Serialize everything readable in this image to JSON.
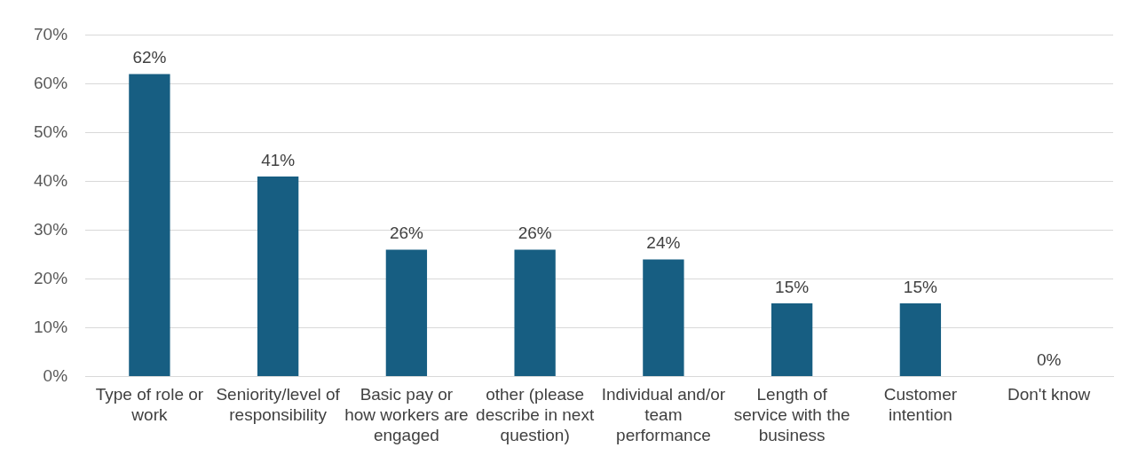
{
  "chart_data": {
    "type": "bar",
    "categories": [
      "Type of role or work",
      "Seniority/level of responsibility",
      "Basic pay or how workers are engaged",
      "other (please describe in next question)",
      "Individual and/or team performance",
      "Length of service with the business",
      "Customer intention",
      "Don't know"
    ],
    "values": [
      62,
      41,
      26,
      26,
      24,
      15,
      15,
      0
    ],
    "value_labels": [
      "62%",
      "41%",
      "26%",
      "26%",
      "24%",
      "15%",
      "15%",
      "0%"
    ],
    "color": "#175e82",
    "ylim": [
      0,
      70
    ],
    "yticks": [
      {
        "value": 0,
        "label": "0%"
      },
      {
        "value": 10,
        "label": "10%"
      },
      {
        "value": 20,
        "label": "20%"
      },
      {
        "value": 30,
        "label": "30%"
      },
      {
        "value": 40,
        "label": "40%"
      },
      {
        "value": 50,
        "label": "50%"
      },
      {
        "value": 60,
        "label": "60%"
      },
      {
        "value": 70,
        "label": "70%"
      }
    ],
    "grid": "y",
    "legend": false
  }
}
